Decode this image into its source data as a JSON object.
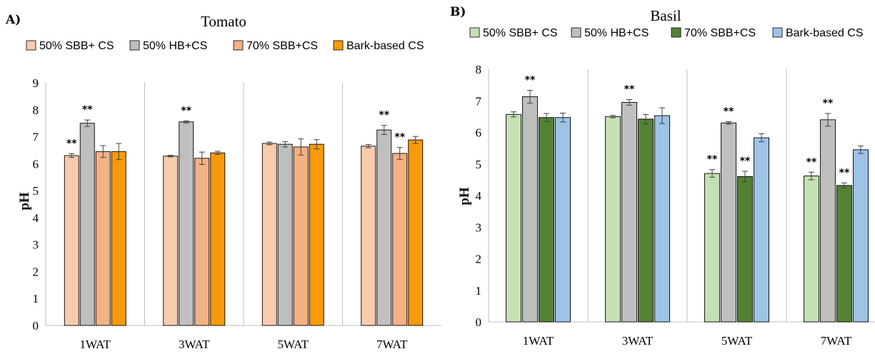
{
  "chart_data": [
    {
      "type": "bar",
      "panel_label": "A)",
      "title": "Tomato",
      "ylabel": "pH",
      "xlabel": "",
      "ylim": [
        0,
        9
      ],
      "yticks": [
        "0",
        "1",
        "2",
        "3",
        "4",
        "5",
        "6",
        "7",
        "8",
        "9"
      ],
      "categories": [
        "1WAT",
        "3WAT",
        "5WAT",
        "7WAT"
      ],
      "legend_position": "top",
      "grid": false,
      "series": [
        {
          "name": "50% SBB+ CS",
          "color": "#F8CBAD",
          "values": [
            6.3,
            6.28,
            6.75,
            6.65
          ],
          "errors": [
            0.07,
            0.03,
            0.05,
            0.06
          ],
          "sig": [
            "**",
            "",
            "",
            ""
          ]
        },
        {
          "name": "50% HB+CS",
          "color": "#BFBFBF",
          "values": [
            7.5,
            7.55,
            6.72,
            7.25
          ],
          "errors": [
            0.12,
            0.04,
            0.1,
            0.17
          ],
          "sig": [
            "**",
            "**",
            "",
            "**"
          ]
        },
        {
          "name": "70% SBB+CS",
          "color": "#F4B183",
          "values": [
            6.45,
            6.2,
            6.62,
            6.38
          ],
          "errors": [
            0.22,
            0.23,
            0.3,
            0.22
          ],
          "sig": [
            "",
            "",
            "",
            "**"
          ]
        },
        {
          "name": "Bark-based CS",
          "color": "#F79A0B",
          "values": [
            6.45,
            6.4,
            6.72,
            6.88
          ],
          "errors": [
            0.3,
            0.06,
            0.17,
            0.13
          ],
          "sig": [
            "",
            "",
            "",
            ""
          ]
        }
      ]
    },
    {
      "type": "bar",
      "panel_label": "B)",
      "title": "Basil",
      "ylabel": "pH",
      "xlabel": "",
      "ylim": [
        0,
        8
      ],
      "yticks": [
        "0",
        "1",
        "2",
        "3",
        "4",
        "5",
        "6",
        "7",
        "8"
      ],
      "categories": [
        "1WAT",
        "3WAT",
        "5WAT",
        "7WAT"
      ],
      "legend_position": "top",
      "grid": false,
      "series": [
        {
          "name": "50% SBB+ CS",
          "color": "#C5E0B4",
          "values": [
            6.57,
            6.5,
            4.7,
            4.62
          ],
          "errors": [
            0.08,
            0.04,
            0.12,
            0.12
          ],
          "sig": [
            "",
            "",
            "**",
            "**"
          ]
        },
        {
          "name": "50% HB+CS",
          "color": "#BFBFBF",
          "values": [
            7.13,
            6.95,
            6.3,
            6.4
          ],
          "errors": [
            0.2,
            0.09,
            0.04,
            0.2
          ],
          "sig": [
            "**",
            "**",
            "**",
            "**"
          ]
        },
        {
          "name": "70% SBB+CS",
          "color": "#548235",
          "values": [
            6.47,
            6.42,
            4.6,
            4.32
          ],
          "errors": [
            0.13,
            0.15,
            0.17,
            0.08
          ],
          "sig": [
            "",
            "",
            "**",
            "**"
          ]
        },
        {
          "name": "Bark-based CS",
          "color": "#9DC3E6",
          "values": [
            6.47,
            6.53,
            5.83,
            5.45
          ],
          "errors": [
            0.14,
            0.25,
            0.13,
            0.12
          ],
          "sig": [
            "",
            "",
            "",
            ""
          ]
        }
      ]
    }
  ]
}
